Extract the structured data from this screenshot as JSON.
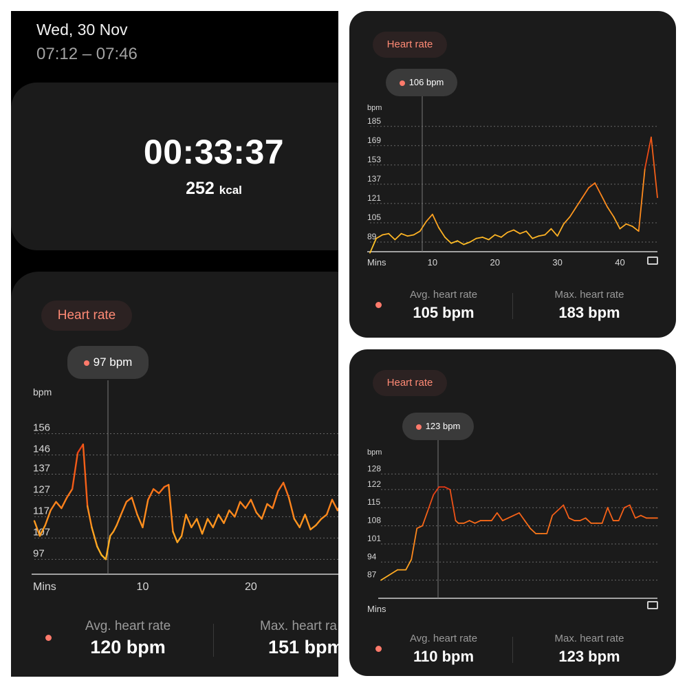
{
  "workout": {
    "date": "Wed, 30 Nov",
    "time_range": "07:12 – 07:46",
    "duration": "00:33:37",
    "calories_value": "252",
    "calories_unit": "kcal"
  },
  "colors": {
    "accent_low": "#ffc928",
    "accent_mid": "#ff7a1a",
    "accent_high": "#d91a12",
    "chip_text": "#ff8a75",
    "dot": "#ff7a6b"
  },
  "panels": {
    "left": {
      "chip_label": "Heart rate",
      "bubble_value": "97 bpm",
      "y_unit": "bpm",
      "x_label": "Mins",
      "avg_label": "Avg. heart rate",
      "avg_value": "120 bpm",
      "max_label": "Max. heart ra",
      "max_value": "151 bpm"
    },
    "top_right": {
      "chip_label": "Heart rate",
      "bubble_value": "106 bpm",
      "y_unit": "bpm",
      "x_label": "Mins",
      "avg_label": "Avg. heart rate",
      "avg_value": "105 bpm",
      "max_label": "Max. heart rate",
      "max_value": "183 bpm",
      "fullscreen_icon": "expand-icon"
    },
    "bottom_right": {
      "chip_label": "Heart rate",
      "bubble_value": "123 bpm",
      "y_unit": "bpm",
      "x_label": "Mins",
      "avg_label": "Avg. heart rate",
      "avg_value": "110 bpm",
      "max_label": "Max. heart rate",
      "max_value": "123 bpm",
      "fullscreen_icon": "expand-icon"
    }
  },
  "chart_data": [
    {
      "type": "line",
      "ylabel": "bpm",
      "xlabel": "Mins",
      "y_ticks": [
        97,
        107,
        117,
        127,
        137,
        146,
        156
      ],
      "x_ticks": [
        10,
        20
      ],
      "ylim": [
        90,
        163
      ],
      "xlim": [
        0,
        28.2
      ],
      "grid": true,
      "series": [
        {
          "x": [
            0,
            0.5,
            1,
            1.5,
            2,
            2.5,
            3,
            3.5,
            4,
            4.5,
            4.9,
            5.3,
            5.8,
            6.2,
            6.6,
            7,
            7.3,
            7.6,
            8,
            8.5,
            9,
            9.5,
            10,
            10.5,
            11,
            11.5,
            12,
            12.4,
            12.8,
            13.2,
            13.6,
            14,
            14.5,
            15,
            15.5,
            16,
            16.5,
            17,
            17.5,
            18,
            18.5,
            19,
            19.5,
            20,
            20.5,
            21,
            21.5,
            22,
            22.5,
            23,
            23.5,
            24,
            24.5,
            25,
            25.5,
            26,
            26.5,
            27,
            27.5,
            28,
            28.2
          ],
          "values": [
            115,
            108,
            113,
            120,
            124,
            121,
            126,
            130,
            147,
            151,
            122,
            112,
            103,
            99,
            97,
            108,
            110,
            113,
            118,
            124,
            126,
            118,
            112,
            125,
            130,
            128,
            131,
            132,
            110,
            105,
            108,
            118,
            112,
            116,
            109,
            116,
            112,
            118,
            114,
            120,
            117,
            124,
            121,
            125,
            119,
            116,
            123,
            121,
            129,
            133,
            126,
            116,
            112,
            118,
            111,
            113,
            116,
            118,
            125,
            120,
            122
          ]
        }
      ]
    },
    {
      "type": "line",
      "ylabel": "bpm",
      "xlabel": "Mins",
      "y_ticks": [
        89,
        105,
        121,
        137,
        153,
        169,
        185
      ],
      "x_ticks": [
        10,
        20,
        30,
        40
      ],
      "ylim": [
        81,
        190
      ],
      "xlim": [
        0,
        46
      ],
      "grid": true,
      "series": [
        {
          "x": [
            0,
            1,
            2,
            3,
            4,
            5,
            6,
            7,
            8,
            9,
            10,
            11,
            12,
            13,
            14,
            15,
            16,
            17,
            18,
            19,
            20,
            21,
            22,
            23,
            24,
            25,
            26,
            27,
            28,
            29,
            30,
            31,
            32,
            33,
            34,
            35,
            36,
            37,
            38,
            39,
            40,
            41,
            42,
            43,
            44,
            45,
            46
          ],
          "values": [
            80,
            92,
            95,
            96,
            91,
            96,
            94,
            95,
            98,
            106,
            112,
            101,
            93,
            88,
            90,
            87,
            89,
            92,
            93,
            91,
            95,
            93,
            97,
            99,
            96,
            98,
            92,
            94,
            95,
            100,
            94,
            104,
            110,
            118,
            126,
            134,
            138,
            128,
            118,
            110,
            100,
            104,
            102,
            98,
            150,
            176,
            126
          ]
        }
      ]
    },
    {
      "type": "line",
      "ylabel": "bpm",
      "xlabel": "Mins",
      "y_ticks": [
        87,
        94,
        101,
        108,
        115,
        122,
        128
      ],
      "x_ticks": [],
      "ylim": [
        80,
        131
      ],
      "xlim": [
        0,
        100
      ],
      "grid": true,
      "series": [
        {
          "x": [
            0,
            3,
            6,
            9,
            11,
            13,
            15,
            17,
            19,
            21,
            23,
            25,
            27,
            28,
            30,
            32,
            34,
            36,
            38,
            40,
            42,
            44,
            46,
            48,
            50,
            52,
            54,
            56,
            58,
            60,
            62,
            64,
            66,
            68,
            70,
            72,
            74,
            76,
            78,
            80,
            82,
            84,
            86,
            88,
            90,
            92,
            94,
            96,
            98,
            100
          ],
          "values": [
            87,
            89,
            91,
            91,
            95,
            107,
            108,
            114,
            120,
            123,
            123,
            122,
            110,
            109,
            109,
            110,
            109,
            110,
            110,
            110,
            113,
            110,
            111,
            112,
            113,
            110,
            107,
            105,
            105,
            105,
            112,
            114,
            116,
            111,
            110,
            110,
            111,
            109,
            109,
            109,
            115,
            110,
            110,
            115,
            116,
            111,
            112,
            111,
            111,
            111
          ]
        }
      ]
    }
  ]
}
